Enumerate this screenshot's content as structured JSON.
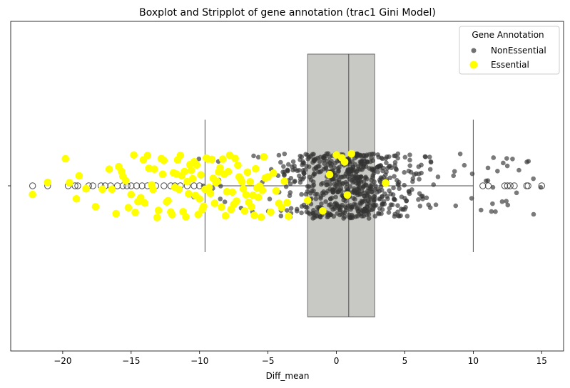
{
  "chart_data": {
    "type": "boxplot+stripplot",
    "title": "Boxplot and Stripplot of gene annotation (trac1 Gini Model)",
    "xlabel": "Diff_mean",
    "ylabel": "",
    "xlim": [
      -23.8,
      16.6
    ],
    "x_ticks": [
      -20,
      -15,
      -10,
      -5,
      0,
      5,
      10,
      15
    ],
    "x_tick_labels": [
      "−20",
      "−15",
      "−10",
      "−5",
      "0",
      "5",
      "10",
      "15"
    ],
    "grid": false,
    "legend": {
      "title": "Gene Annotation",
      "placement": "top-right",
      "entries": [
        {
          "label": "NonEssential",
          "color": "#333333"
        },
        {
          "label": "Essential",
          "color": "#ffff00"
        }
      ]
    },
    "box": {
      "q1": -2.1,
      "median": 0.9,
      "q3": 2.8,
      "whisker_low": -9.6,
      "whisker_high": 10.0,
      "color": "#c8c9c4"
    },
    "outliers": [
      -22.2,
      -21.1,
      -19.6,
      -19.1,
      -18.9,
      -18.1,
      -17.8,
      -17.2,
      -16.9,
      -16.5,
      -16.0,
      -15.6,
      -15.3,
      -15.0,
      -14.6,
      -14.2,
      -13.8,
      -13.2,
      -12.6,
      -12.1,
      -11.8,
      -11.4,
      -10.9,
      -10.4,
      -10.0,
      10.7,
      11.1,
      12.3,
      12.5,
      12.7,
      13.0,
      13.9,
      14.0,
      15.0
    ],
    "series": [
      {
        "name": "NonEssential",
        "color": "#333333",
        "distribution": {
          "count": 700,
          "min": -10.5,
          "max": 15.0,
          "center": 0.9,
          "spread": 3.2
        }
      },
      {
        "name": "Essential",
        "color": "#ffff00",
        "values": [
          -22.2,
          -21.1,
          -19.8,
          -19.5,
          -19.0,
          -18.8,
          -18.3,
          -17.6,
          -17.1,
          -16.6,
          -16.4,
          -16.1,
          -15.9,
          -15.7,
          -15.6,
          -15.4,
          -15.2,
          -15.0,
          -14.8,
          -14.7,
          -14.5,
          -14.3,
          -14.1,
          -14.0,
          -13.8,
          -13.7,
          -13.5,
          -13.4,
          -13.3,
          -13.1,
          -13.0,
          -12.8,
          -12.7,
          -12.6,
          -12.4,
          -12.3,
          -12.1,
          -12.0,
          -11.9,
          -11.8,
          -11.7,
          -11.6,
          -11.5,
          -11.4,
          -11.3,
          -11.2,
          -11.1,
          -11.0,
          -10.9,
          -10.8,
          -10.7,
          -10.6,
          -10.5,
          -10.4,
          -10.3,
          -10.2,
          -10.1,
          -10.0,
          -9.9,
          -9.8,
          -9.7,
          -9.6,
          -9.5,
          -9.4,
          -9.3,
          -9.2,
          -9.1,
          -9.0,
          -8.9,
          -8.8,
          -8.7,
          -8.6,
          -8.5,
          -8.4,
          -8.3,
          -8.2,
          -8.1,
          -8.0,
          -7.9,
          -7.8,
          -7.7,
          -7.6,
          -7.5,
          -7.4,
          -7.3,
          -7.2,
          -7.1,
          -7.0,
          -6.9,
          -6.8,
          -6.7,
          -6.6,
          -6.5,
          -6.4,
          -6.3,
          -6.2,
          -6.1,
          -6.0,
          -5.9,
          -5.8,
          -5.7,
          -5.6,
          -5.5,
          -5.4,
          -5.3,
          -5.2,
          -5.0,
          -4.8,
          -4.6,
          -4.4,
          -4.2,
          -4.0,
          -3.8,
          -3.6,
          -3.5,
          -2.1,
          -1.0,
          -0.5,
          0.0,
          0.4,
          0.6,
          0.8,
          1.1,
          3.6
        ]
      }
    ]
  }
}
